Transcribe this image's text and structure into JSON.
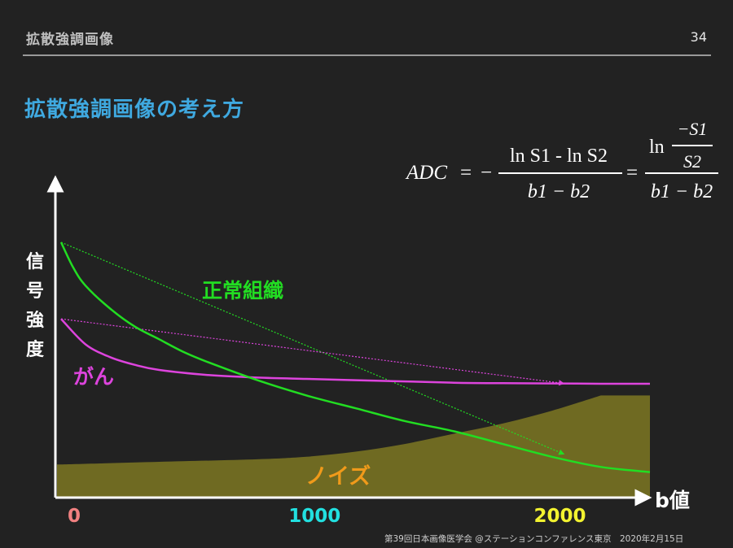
{
  "header": {
    "title": "拡散強調画像",
    "page_number": "34"
  },
  "slide_title": "拡散強調画像の考え方",
  "formula": {
    "lhs": "ADC",
    "eq1": "=",
    "neg": "−",
    "num1": "ln S1 - ln S2",
    "den1": "b1 − b2",
    "eq2": "=",
    "ln": "ln",
    "inner_num": "−S1",
    "inner_den": "S2",
    "den2": "b1 − b2"
  },
  "ylabel_chars": [
    "信",
    "号",
    "強",
    "度"
  ],
  "footer": "第39回日本画像医学会 @ステーションコンファレンス東京　2020年2月15日",
  "chart_data": {
    "type": "line",
    "xlabel": "b値",
    "ylabel": "信号強度",
    "xlim": [
      0,
      2400
    ],
    "ylim": [
      0,
      1
    ],
    "x_ticks": [
      {
        "value": 0,
        "label": "0",
        "color": "#f08080"
      },
      {
        "value": 1000,
        "label": "1000",
        "color": "#22e0e0"
      },
      {
        "value": 2000,
        "label": "2000",
        "color": "#f2f230"
      }
    ],
    "series": [
      {
        "name": "正常組織",
        "color": "#22dd22",
        "x": [
          0,
          50,
          100,
          200,
          300,
          400,
          500,
          600,
          800,
          1000,
          1200,
          1400,
          1600,
          1800,
          2000,
          2200,
          2400
        ],
        "y": [
          1.0,
          0.9,
          0.83,
          0.74,
          0.67,
          0.62,
          0.57,
          0.53,
          0.46,
          0.4,
          0.35,
          0.3,
          0.26,
          0.21,
          0.16,
          0.12,
          0.1
        ],
        "slope_line": {
          "x": [
            0,
            2050
          ],
          "y": [
            1.0,
            0.17
          ]
        }
      },
      {
        "name": "がん",
        "color": "#dd44dd",
        "x": [
          0,
          100,
          200,
          300,
          400,
          600,
          800,
          1000,
          1200,
          1400,
          1600,
          1800,
          2000,
          2200,
          2400
        ],
        "y": [
          0.7,
          0.6,
          0.55,
          0.52,
          0.5,
          0.48,
          0.47,
          0.465,
          0.46,
          0.455,
          0.45,
          0.448,
          0.447,
          0.446,
          0.446
        ],
        "slope_line": {
          "x": [
            0,
            2050
          ],
          "y": [
            0.7,
            0.447
          ]
        }
      },
      {
        "name": "ノイズ",
        "color": "#d8d020",
        "type": "area",
        "x": [
          0,
          400,
          800,
          1000,
          1200,
          1400,
          1600,
          1800,
          2000,
          2200,
          2400
        ],
        "y": [
          0.13,
          0.14,
          0.15,
          0.16,
          0.18,
          0.21,
          0.25,
          0.29,
          0.34,
          0.4,
          0.4
        ]
      }
    ]
  }
}
